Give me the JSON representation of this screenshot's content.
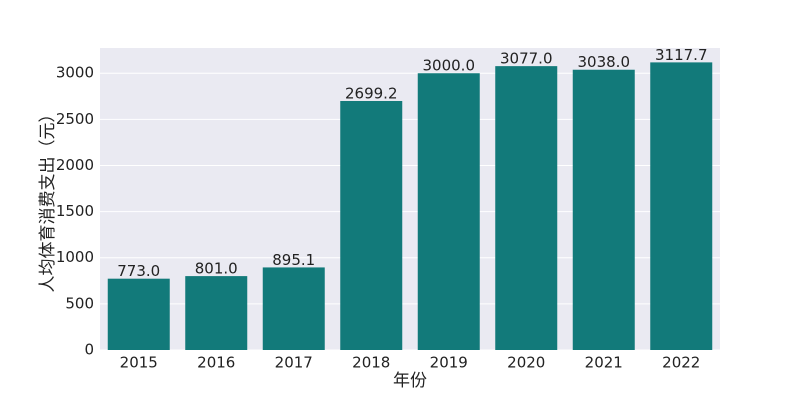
{
  "chart_data": {
    "type": "bar",
    "categories": [
      "2015",
      "2016",
      "2017",
      "2018",
      "2019",
      "2020",
      "2021",
      "2022"
    ],
    "values": [
      773.0,
      801.0,
      895.1,
      2699.2,
      3000.0,
      3077.0,
      3038.0,
      3117.7
    ],
    "value_labels": [
      "773.0",
      "801.0",
      "895.1",
      "2699.2",
      "3000.0",
      "3077.0",
      "3038.0",
      "3117.7"
    ],
    "color": "#127a7a",
    "xlabel": "年份",
    "ylabel": "人均体育消费支出（元）",
    "ylim": [
      0,
      3273.6
    ],
    "yticks": [
      0,
      500,
      1000,
      1500,
      2000,
      2500,
      3000
    ],
    "grid": true
  }
}
